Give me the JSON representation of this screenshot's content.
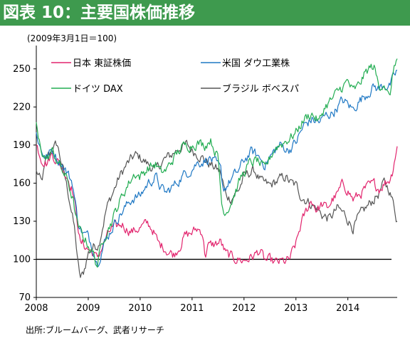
{
  "header": {
    "title": "図表 10：主要国株価推移"
  },
  "note": "(2009年3月1日＝100)",
  "source": "出所:ブルームバーグ、武者リサーチ",
  "chart_data": {
    "type": "line",
    "title": "図表 10：主要国株価推移",
    "subtitle": "(2009年3月1日＝100)",
    "xlabel": "",
    "ylabel": "",
    "xlim": [
      2008.0,
      2014.95
    ],
    "ylim": [
      70,
      265
    ],
    "x_ticks": [
      2008,
      2009,
      2010,
      2011,
      2012,
      2013,
      2014
    ],
    "y_ticks": [
      70,
      100,
      130,
      160,
      190,
      220,
      250
    ],
    "grid": false,
    "legend_position": "top",
    "reference_line": {
      "y": 100,
      "color": "#000000"
    },
    "series": [
      {
        "name": "日本 東証株価",
        "color": "#e2256e",
        "x": [
          2008.0,
          2008.1,
          2008.2,
          2008.3,
          2008.4,
          2008.5,
          2008.6,
          2008.7,
          2008.8,
          2008.85,
          2008.9,
          2009.0,
          2009.1,
          2009.17,
          2009.25,
          2009.35,
          2009.45,
          2009.55,
          2009.65,
          2009.75,
          2009.85,
          2010.0,
          2010.15,
          2010.25,
          2010.35,
          2010.45,
          2010.55,
          2010.65,
          2010.75,
          2010.85,
          2011.0,
          2011.1,
          2011.2,
          2011.25,
          2011.3,
          2011.45,
          2011.55,
          2011.65,
          2011.8,
          2012.0,
          2012.1,
          2012.2,
          2012.3,
          2012.4,
          2012.5,
          2012.6,
          2012.7,
          2012.8,
          2012.88,
          2013.0,
          2013.1,
          2013.2,
          2013.3,
          2013.4,
          2013.5,
          2013.6,
          2013.7,
          2013.8,
          2013.9,
          2014.0,
          2014.1,
          2014.2,
          2014.3,
          2014.4,
          2014.5,
          2014.6,
          2014.7,
          2014.8,
          2014.85,
          2014.9,
          2014.95
        ],
        "y": [
          190,
          180,
          176,
          183,
          178,
          172,
          165,
          155,
          128,
          112,
          112,
          108,
          105,
          100,
          108,
          117,
          124,
          125,
          128,
          124,
          122,
          125,
          128,
          123,
          112,
          110,
          106,
          104,
          110,
          118,
          121,
          124,
          122,
          103,
          110,
          112,
          114,
          104,
          101,
          99,
          101,
          103,
          107,
          99,
          99,
          97,
          98,
          98,
          100,
          112,
          128,
          138,
          147,
          139,
          143,
          140,
          147,
          151,
          159,
          155,
          147,
          150,
          154,
          157,
          159,
          156,
          160,
          163,
          168,
          180,
          189
        ]
      },
      {
        "name": "米国 ダウ工業株",
        "color": "#1f78c4",
        "x": [
          2008.0,
          2008.1,
          2008.2,
          2008.3,
          2008.4,
          2008.5,
          2008.6,
          2008.7,
          2008.8,
          2008.9,
          2009.0,
          2009.1,
          2009.17,
          2009.3,
          2009.45,
          2009.55,
          2009.7,
          2009.85,
          2010.0,
          2010.15,
          2010.3,
          2010.4,
          2010.5,
          2010.65,
          2010.8,
          2010.95,
          2011.1,
          2011.25,
          2011.35,
          2011.45,
          2011.55,
          2011.6,
          2011.7,
          2011.8,
          2011.9,
          2012.0,
          2012.15,
          2012.3,
          2012.4,
          2012.5,
          2012.6,
          2012.7,
          2012.85,
          2013.0,
          2013.15,
          2013.3,
          2013.45,
          2013.6,
          2013.7,
          2013.8,
          2013.9,
          2014.0,
          2014.1,
          2014.2,
          2014.3,
          2014.4,
          2014.5,
          2014.6,
          2014.7,
          2014.8,
          2014.9,
          2014.95
        ],
        "y": [
          200,
          185,
          180,
          186,
          180,
          175,
          168,
          160,
          130,
          120,
          118,
          108,
          97,
          112,
          124,
          132,
          140,
          148,
          150,
          160,
          165,
          156,
          152,
          158,
          165,
          170,
          176,
          178,
          180,
          175,
          170,
          155,
          160,
          165,
          170,
          178,
          185,
          180,
          175,
          180,
          186,
          190,
          186,
          192,
          205,
          210,
          208,
          214,
          215,
          220,
          225,
          222,
          218,
          224,
          228,
          232,
          236,
          234,
          238,
          236,
          244,
          249
        ]
      },
      {
        "name": "ドイツ DAX",
        "color": "#22ad52",
        "x": [
          2008.0,
          2008.03,
          2008.1,
          2008.2,
          2008.3,
          2008.4,
          2008.5,
          2008.6,
          2008.7,
          2008.8,
          2008.9,
          2009.0,
          2009.1,
          2009.17,
          2009.3,
          2009.45,
          2009.6,
          2009.75,
          2009.9,
          2010.0,
          2010.15,
          2010.3,
          2010.4,
          2010.5,
          2010.65,
          2010.8,
          2010.95,
          2011.1,
          2011.25,
          2011.35,
          2011.5,
          2011.58,
          2011.65,
          2011.75,
          2011.85,
          2011.95,
          2012.1,
          2012.25,
          2012.4,
          2012.5,
          2012.6,
          2012.75,
          2012.9,
          2013.0,
          2013.15,
          2013.3,
          2013.45,
          2013.55,
          2013.7,
          2013.85,
          2014.0,
          2014.1,
          2014.2,
          2014.3,
          2014.4,
          2014.5,
          2014.6,
          2014.7,
          2014.75,
          2014.8,
          2014.85,
          2014.9,
          2014.95
        ],
        "y": [
          208,
          195,
          186,
          178,
          185,
          178,
          170,
          162,
          148,
          125,
          118,
          112,
          104,
          95,
          118,
          130,
          145,
          158,
          168,
          165,
          172,
          175,
          168,
          170,
          180,
          188,
          190,
          192,
          190,
          195,
          180,
          140,
          138,
          145,
          155,
          165,
          175,
          178,
          170,
          180,
          188,
          192,
          196,
          200,
          210,
          215,
          208,
          220,
          226,
          234,
          240,
          232,
          236,
          244,
          250,
          252,
          236,
          240,
          232,
          226,
          240,
          255,
          258
        ]
      },
      {
        "name": "ブラジル ボベスパ",
        "color": "#555555",
        "x": [
          2008.0,
          2008.1,
          2008.2,
          2008.3,
          2008.4,
          2008.45,
          2008.55,
          2008.65,
          2008.75,
          2008.8,
          2008.85,
          2008.9,
          2009.0,
          2009.1,
          2009.2,
          2009.35,
          2009.5,
          2009.6,
          2009.75,
          2009.9,
          2010.0,
          2010.15,
          2010.3,
          2010.45,
          2010.6,
          2010.75,
          2010.9,
          2011.0,
          2011.15,
          2011.3,
          2011.45,
          2011.55,
          2011.65,
          2011.75,
          2011.9,
          2012.0,
          2012.1,
          2012.2,
          2012.35,
          2012.5,
          2012.65,
          2012.8,
          2012.9,
          2013.0,
          2013.1,
          2013.25,
          2013.4,
          2013.5,
          2013.65,
          2013.8,
          2013.95,
          2014.1,
          2014.2,
          2014.3,
          2014.45,
          2014.6,
          2014.7,
          2014.8,
          2014.9,
          2014.95
        ],
        "y": [
          170,
          160,
          180,
          186,
          191,
          182,
          165,
          145,
          120,
          96,
          85,
          88,
          105,
          110,
          112,
          140,
          155,
          165,
          175,
          182,
          180,
          175,
          170,
          178,
          182,
          188,
          190,
          186,
          182,
          176,
          172,
          168,
          150,
          148,
          155,
          165,
          168,
          170,
          160,
          158,
          162,
          165,
          160,
          158,
          150,
          145,
          140,
          135,
          132,
          140,
          135,
          125,
          132,
          138,
          145,
          152,
          160,
          155,
          140,
          130
        ]
      }
    ]
  }
}
